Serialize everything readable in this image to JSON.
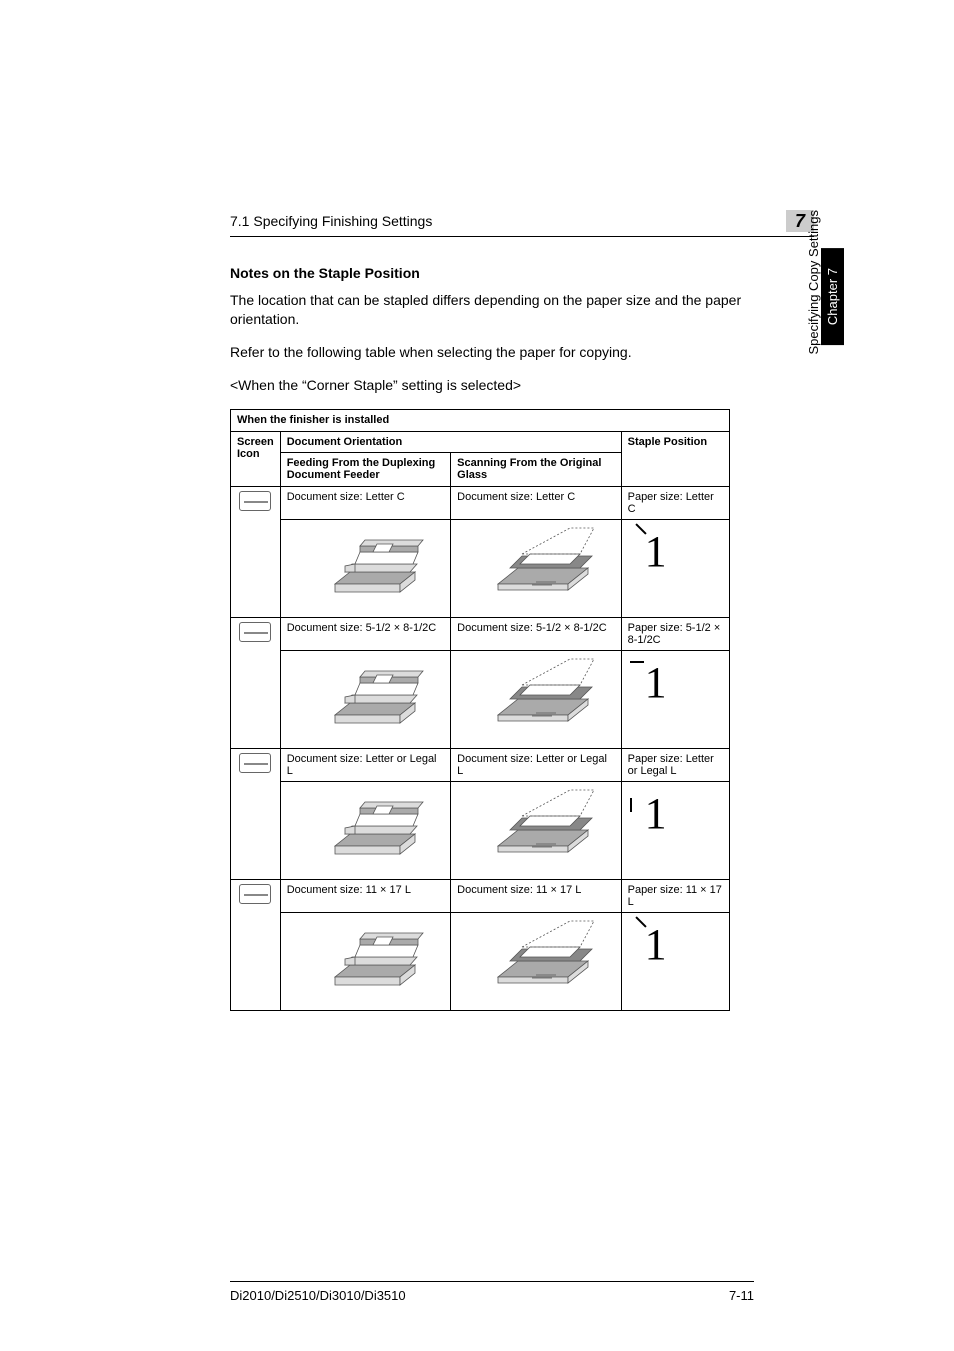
{
  "header": {
    "section_title": "7.1 Specifying Finishing Settings",
    "chapter_number": "7"
  },
  "sidebar": {
    "chapter_tab": "Chapter 7",
    "section_tab": "Specifying Copy Settings"
  },
  "content": {
    "heading": "Notes on the Staple Position",
    "para1": "The location that can be stapled differs depending on the paper size and the paper orientation.",
    "para2": "Refer to the following table when selecting the paper for copying.",
    "para3": "<When the “Corner Staple” setting is selected>"
  },
  "table": {
    "title": "When the finisher is installed",
    "col_screen_icon": "Screen Icon",
    "col_doc_orientation": "Document Orientation",
    "col_feed_duplex": "Feeding From the Duplexing Document Feeder",
    "col_scan_glass": "Scanning From the Original Glass",
    "col_staple_pos": "Staple Position",
    "rows": [
      {
        "duplex_label": "Document size: Letter C",
        "glass_label": "Document size: Letter C",
        "staple_label": "Paper size: Letter C",
        "staple_style": "diag"
      },
      {
        "duplex_label": "Document size: 5-1/2 × 8-1/2C",
        "glass_label": "Document size: 5-1/2 × 8-1/2C",
        "staple_label": "Paper size: 5-1/2 × 8-1/2C",
        "staple_style": "horiz"
      },
      {
        "duplex_label": "Document size: Letter or Legal L",
        "glass_label": "Document size: Letter or Legal L",
        "staple_label": "Paper size: Letter or Legal L",
        "staple_style": "vert"
      },
      {
        "duplex_label": "Document size: 11 × 17 L",
        "glass_label": "Document size: 11 × 17 L",
        "staple_label": "Paper size: 11 × 17 L",
        "staple_style": "diag"
      }
    ],
    "illustration_colors": {
      "machine_stroke": "#555555",
      "machine_fill_light": "#dcdcdc",
      "machine_fill_mid": "#aaaaaa",
      "paper_fill": "#ffffff"
    }
  },
  "footer": {
    "model": "Di2010/Di2510/Di3010/Di3510",
    "page_num": "7-11"
  }
}
